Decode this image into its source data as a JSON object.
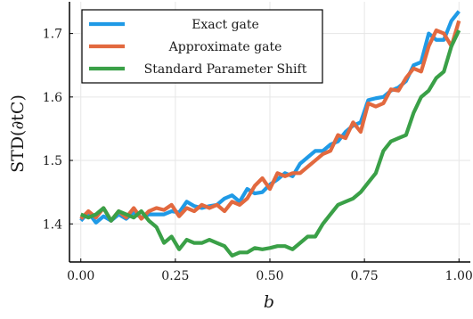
{
  "chart_data": {
    "type": "line",
    "xlabel": "b",
    "ylabel": "STD(∂tC)",
    "xlim": [
      -0.03,
      1.03
    ],
    "ylim": [
      1.34,
      1.75
    ],
    "grid": true,
    "legend": "top-left",
    "xticks": [
      {
        "v": 0.0,
        "label": "0.00"
      },
      {
        "v": 0.25,
        "label": "0.25"
      },
      {
        "v": 0.5,
        "label": "0.50"
      },
      {
        "v": 0.75,
        "label": "0.75"
      },
      {
        "v": 1.0,
        "label": "1.00"
      }
    ],
    "yticks": [
      {
        "v": 1.4,
        "label": "1.4"
      },
      {
        "v": 1.5,
        "label": "1.5"
      },
      {
        "v": 1.6,
        "label": "1.6"
      },
      {
        "v": 1.7,
        "label": "1.7"
      }
    ],
    "x": [
      0.0,
      0.02,
      0.04,
      0.06,
      0.08,
      0.1,
      0.12,
      0.14,
      0.16,
      0.18,
      0.2,
      0.22,
      0.24,
      0.26,
      0.28,
      0.3,
      0.32,
      0.34,
      0.36,
      0.38,
      0.4,
      0.42,
      0.44,
      0.46,
      0.48,
      0.5,
      0.52,
      0.54,
      0.56,
      0.58,
      0.6,
      0.62,
      0.64,
      0.66,
      0.68,
      0.7,
      0.72,
      0.74,
      0.76,
      0.78,
      0.8,
      0.82,
      0.84,
      0.86,
      0.88,
      0.9,
      0.92,
      0.94,
      0.96,
      0.98,
      1.0
    ],
    "series": [
      {
        "name": "Exact gate",
        "color": "#1f9ae6",
        "values": [
          1.405,
          1.418,
          1.402,
          1.412,
          1.405,
          1.415,
          1.408,
          1.418,
          1.41,
          1.415,
          1.415,
          1.415,
          1.42,
          1.418,
          1.435,
          1.428,
          1.425,
          1.428,
          1.43,
          1.44,
          1.445,
          1.435,
          1.455,
          1.448,
          1.45,
          1.462,
          1.47,
          1.48,
          1.475,
          1.495,
          1.505,
          1.515,
          1.515,
          1.525,
          1.53,
          1.545,
          1.555,
          1.56,
          1.595,
          1.598,
          1.6,
          1.61,
          1.615,
          1.625,
          1.65,
          1.655,
          1.7,
          1.69,
          1.69,
          1.72,
          1.735
        ]
      },
      {
        "name": "Approximate gate",
        "color": "#e2693f",
        "values": [
          1.408,
          1.42,
          1.41,
          1.425,
          1.405,
          1.42,
          1.41,
          1.425,
          1.408,
          1.42,
          1.425,
          1.422,
          1.43,
          1.412,
          1.425,
          1.42,
          1.43,
          1.425,
          1.43,
          1.42,
          1.435,
          1.43,
          1.44,
          1.46,
          1.472,
          1.455,
          1.48,
          1.475,
          1.48,
          1.48,
          1.49,
          1.5,
          1.51,
          1.515,
          1.54,
          1.535,
          1.56,
          1.545,
          1.59,
          1.585,
          1.59,
          1.612,
          1.61,
          1.63,
          1.645,
          1.64,
          1.68,
          1.705,
          1.7,
          1.68,
          1.72
        ]
      },
      {
        "name": "Standard Parameter Shift",
        "color": "#3aa047",
        "values": [
          1.415,
          1.41,
          1.415,
          1.425,
          1.405,
          1.42,
          1.415,
          1.41,
          1.42,
          1.405,
          1.395,
          1.37,
          1.38,
          1.36,
          1.375,
          1.37,
          1.37,
          1.375,
          1.37,
          1.365,
          1.35,
          1.355,
          1.355,
          1.362,
          1.36,
          1.362,
          1.365,
          1.365,
          1.36,
          1.37,
          1.38,
          1.38,
          1.4,
          1.415,
          1.43,
          1.435,
          1.44,
          1.45,
          1.465,
          1.48,
          1.515,
          1.53,
          1.535,
          1.54,
          1.575,
          1.6,
          1.61,
          1.63,
          1.64,
          1.68,
          1.705
        ]
      }
    ]
  }
}
